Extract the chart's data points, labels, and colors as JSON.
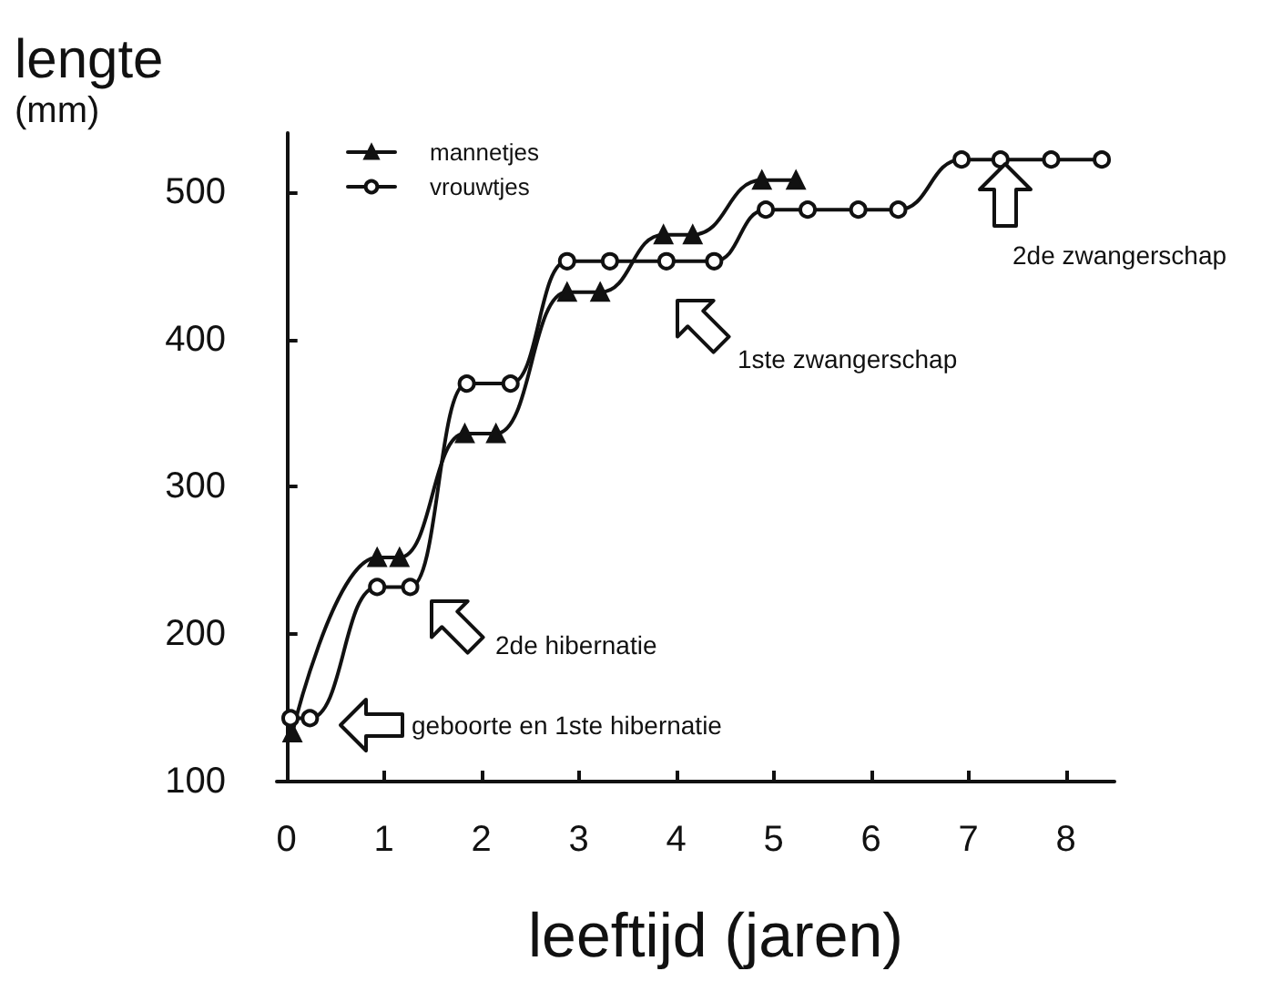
{
  "chart_data": {
    "type": "line",
    "xlabel": "leeftijd (jaren)",
    "ylabel": "lengte\n(mm)",
    "xlim": [
      -0.1,
      8.5
    ],
    "xticks": [
      0,
      1,
      2,
      3,
      4,
      5,
      6,
      7,
      8
    ],
    "ylim": [
      100,
      540
    ],
    "yticks": [
      100,
      200,
      300,
      400,
      500
    ],
    "grid": false,
    "legend": "top left",
    "line_style": "solid",
    "series": [
      {
        "name": "mannetjes",
        "color": "#111111",
        "marker": "triangle",
        "x": [
          0.06,
          0.93,
          1.16,
          1.83,
          2.15,
          2.88,
          3.22,
          3.87,
          4.17,
          4.88,
          5.23
        ],
        "values": [
          133,
          252,
          252,
          336,
          336,
          432,
          432,
          471,
          471,
          508,
          508
        ]
      },
      {
        "name": "vrouwtjes",
        "color": "#111111",
        "marker": "circle",
        "x": [
          0.04,
          0.24,
          0.93,
          1.27,
          1.85,
          2.3,
          2.88,
          3.32,
          3.9,
          4.39,
          4.92,
          5.35,
          5.87,
          6.28,
          6.93,
          7.33,
          7.85,
          8.37
        ],
        "values": [
          143,
          143,
          232,
          232,
          370,
          370,
          453,
          453,
          453,
          453,
          488,
          488,
          488,
          488,
          522,
          522,
          522,
          522
        ]
      }
    ],
    "annotations": [
      "geboorte en 1ste hibernatie",
      "2de hibernatie",
      "1ste zwangerschap",
      "2de zwangerschap"
    ]
  }
}
